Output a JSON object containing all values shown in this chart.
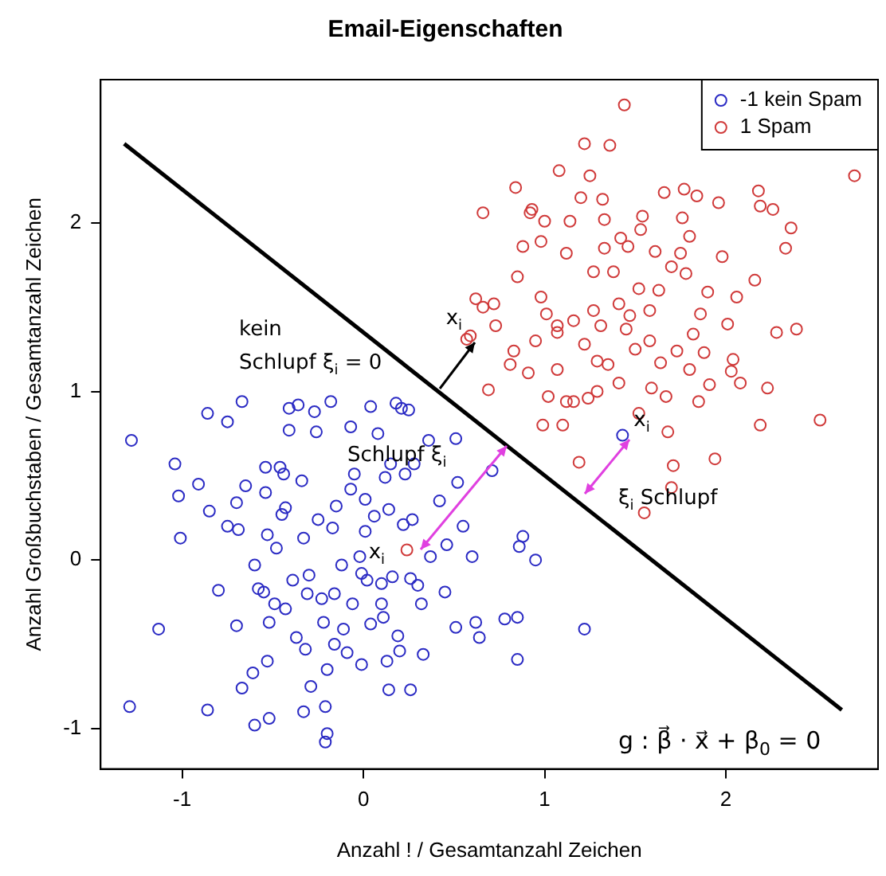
{
  "chart_data": {
    "type": "scatter",
    "title": "Email-Eigenschaften",
    "xlabel": "Anzahl ! / Gesamtanzahl Zeichen",
    "ylabel": "Anzahl Großbuchstaben / Gesamtanzahl Zeichen",
    "xlim": [
      -1.45,
      2.84
    ],
    "ylim": [
      -1.24,
      2.85
    ],
    "xticks": [
      -1,
      0,
      1,
      2
    ],
    "yticks": [
      -1,
      0,
      1,
      2
    ],
    "grid": false,
    "legend": "top right",
    "marker": "circle",
    "series": [
      {
        "name": "-1 kein Spam",
        "color": "#2b2bc4",
        "x": [
          -1.28,
          -1.29,
          -1.13,
          -1.04,
          -1.02,
          -1.01,
          -0.91,
          -0.86,
          -0.85,
          -0.86,
          -0.8,
          -0.75,
          -0.75,
          -0.7,
          -0.69,
          -0.67,
          -0.65,
          -0.6,
          -0.6,
          -0.58,
          -0.55,
          -0.54,
          -0.54,
          -0.53,
          -0.52,
          -0.53,
          -0.52,
          -0.48,
          -0.46,
          -0.44,
          -0.45,
          -0.43,
          -0.43,
          -0.41,
          -0.41,
          -0.39,
          -0.37,
          -0.36,
          -0.34,
          -0.33,
          -0.33,
          -0.32,
          -0.3,
          -0.29,
          -0.26,
          -0.27,
          -0.25,
          -0.23,
          -0.22,
          -0.21,
          -0.2,
          -0.2,
          -0.18,
          -0.17,
          -0.15,
          -0.16,
          -0.12,
          -0.11,
          -0.09,
          -0.07,
          -0.07,
          -0.05,
          -0.06,
          -0.02,
          -0.01,
          0.01,
          0.01,
          0.02,
          0.04,
          0.04,
          0.06,
          0.08,
          0.1,
          0.11,
          0.12,
          0.13,
          0.14,
          0.15,
          0.16,
          0.18,
          0.21,
          0.19,
          0.2,
          0.22,
          0.23,
          0.25,
          0.26,
          0.26,
          0.27,
          0.28,
          0.3,
          0.32,
          0.33,
          0.36,
          0.37,
          0.42,
          0.46,
          0.45,
          0.51,
          0.51,
          0.52,
          0.55,
          0.6,
          0.62,
          0.64,
          0.71,
          0.78,
          0.85,
          0.85,
          0.86,
          0.88,
          0.95,
          1.22,
          1.43,
          0.14,
          -0.61,
          -0.67,
          -0.31,
          -0.49,
          -0.7,
          -0.16,
          -0.01,
          0.1,
          -0.21
        ],
        "values": [
          0.71,
          -0.87,
          -0.41,
          0.57,
          0.38,
          0.13,
          0.45,
          0.87,
          0.29,
          -0.89,
          -0.18,
          0.82,
          0.2,
          0.34,
          0.18,
          0.94,
          0.44,
          -0.03,
          -0.98,
          -0.17,
          -0.19,
          0.55,
          0.4,
          0.15,
          -0.37,
          -0.6,
          -0.94,
          0.07,
          0.55,
          0.51,
          0.27,
          0.31,
          -0.29,
          0.9,
          0.77,
          -0.12,
          -0.46,
          0.92,
          0.47,
          0.13,
          -0.9,
          -0.53,
          -0.09,
          -0.75,
          0.76,
          0.88,
          0.24,
          -0.23,
          -0.37,
          -0.87,
          -1.03,
          -0.65,
          0.94,
          0.19,
          0.32,
          -0.2,
          -0.03,
          -0.41,
          -0.55,
          0.42,
          0.79,
          0.51,
          -0.26,
          0.02,
          -0.08,
          0.17,
          0.36,
          -0.12,
          0.91,
          -0.38,
          0.26,
          0.75,
          -0.26,
          -0.34,
          0.49,
          -0.6,
          0.3,
          0.57,
          -0.1,
          0.93,
          0.9,
          -0.45,
          -0.54,
          0.21,
          0.51,
          0.89,
          -0.11,
          -0.77,
          0.24,
          0.57,
          -0.15,
          -0.26,
          -0.56,
          0.71,
          0.02,
          0.35,
          0.09,
          -0.19,
          0.72,
          -0.4,
          0.46,
          0.2,
          0.02,
          -0.37,
          -0.46,
          0.53,
          -0.35,
          -0.34,
          -0.59,
          0.08,
          0.14,
          0.0,
          -0.41,
          0.74,
          -0.77,
          -0.67,
          -0.76,
          -0.2,
          -0.26,
          -0.39,
          -0.5,
          -0.62,
          -0.14,
          -1.08
        ]
      },
      {
        "name": "1 Spam",
        "color": "#d03a3a",
        "x": [
          0.24,
          0.57,
          0.59,
          0.62,
          0.66,
          0.66,
          0.69,
          0.72,
          0.73,
          0.81,
          0.83,
          0.84,
          0.85,
          0.88,
          0.91,
          0.92,
          0.93,
          0.95,
          0.98,
          0.98,
          0.99,
          1.0,
          1.01,
          1.02,
          1.07,
          1.07,
          1.08,
          1.07,
          1.1,
          1.12,
          1.12,
          1.14,
          1.16,
          1.16,
          1.19,
          1.2,
          1.22,
          1.22,
          1.24,
          1.25,
          1.27,
          1.27,
          1.29,
          1.31,
          1.32,
          1.33,
          1.33,
          1.35,
          1.36,
          1.38,
          1.41,
          1.42,
          1.44,
          1.45,
          1.46,
          1.47,
          1.5,
          1.52,
          1.53,
          1.54,
          1.55,
          1.58,
          1.59,
          1.61,
          1.63,
          1.64,
          1.66,
          1.67,
          1.68,
          1.7,
          1.71,
          1.73,
          1.75,
          1.76,
          1.77,
          1.78,
          1.8,
          1.8,
          1.82,
          1.84,
          1.85,
          1.86,
          1.88,
          1.9,
          1.91,
          1.94,
          1.96,
          1.98,
          2.01,
          2.04,
          2.06,
          2.08,
          2.16,
          2.18,
          2.19,
          2.19,
          2.23,
          2.26,
          2.28,
          2.33,
          2.36,
          2.39,
          2.52,
          2.71,
          1.52,
          1.41,
          1.29,
          1.7,
          2.03,
          1.58
        ],
        "values": [
          0.06,
          1.31,
          1.33,
          1.55,
          1.5,
          2.06,
          1.01,
          1.52,
          1.39,
          1.16,
          1.24,
          2.21,
          1.68,
          1.86,
          1.11,
          2.06,
          2.08,
          1.3,
          1.56,
          1.89,
          0.8,
          2.01,
          1.46,
          0.97,
          1.13,
          1.39,
          2.31,
          1.35,
          0.8,
          1.82,
          0.94,
          2.01,
          1.42,
          0.94,
          0.58,
          2.15,
          1.28,
          2.47,
          0.96,
          2.28,
          1.71,
          1.48,
          1.0,
          1.39,
          2.14,
          2.02,
          1.85,
          1.16,
          2.46,
          1.71,
          1.52,
          1.91,
          2.7,
          1.37,
          1.86,
          1.45,
          1.25,
          1.61,
          1.96,
          2.04,
          0.28,
          1.48,
          1.02,
          1.83,
          1.6,
          1.17,
          2.18,
          0.97,
          0.76,
          1.74,
          0.56,
          1.24,
          1.82,
          2.03,
          2.2,
          1.7,
          1.13,
          1.92,
          1.34,
          2.16,
          0.94,
          1.46,
          1.23,
          1.59,
          1.04,
          0.6,
          2.12,
          1.8,
          1.4,
          1.19,
          1.56,
          1.05,
          1.66,
          2.19,
          2.1,
          0.8,
          1.02,
          2.08,
          1.35,
          1.85,
          1.97,
          1.37,
          0.83,
          2.28,
          0.87,
          1.05,
          1.18,
          0.43,
          1.12,
          1.3
        ]
      },
      {
        "type": "line",
        "marker": "none",
        "color": "#000000",
        "x": [
          -1.32,
          2.64
        ],
        "values": [
          2.47,
          -0.89
        ]
      }
    ],
    "annotations": [
      "kein",
      "Schlupf ξ$_{i}$ = 0",
      {
        "text": "x$_{i}$",
        "x": 0.57,
        "y": 1.31
      },
      "Schlupf ξ$_{i}$",
      {
        "text": "x$_{i}$",
        "x": 0.24,
        "y": 0.06
      },
      {
        "text": "x$_{i}$",
        "x": 1.43,
        "y": 0.74
      },
      "ξ$_{i}$ Schlupf",
      "g : β⃗ · x⃗ + β$_{0}$ = 0"
    ]
  }
}
